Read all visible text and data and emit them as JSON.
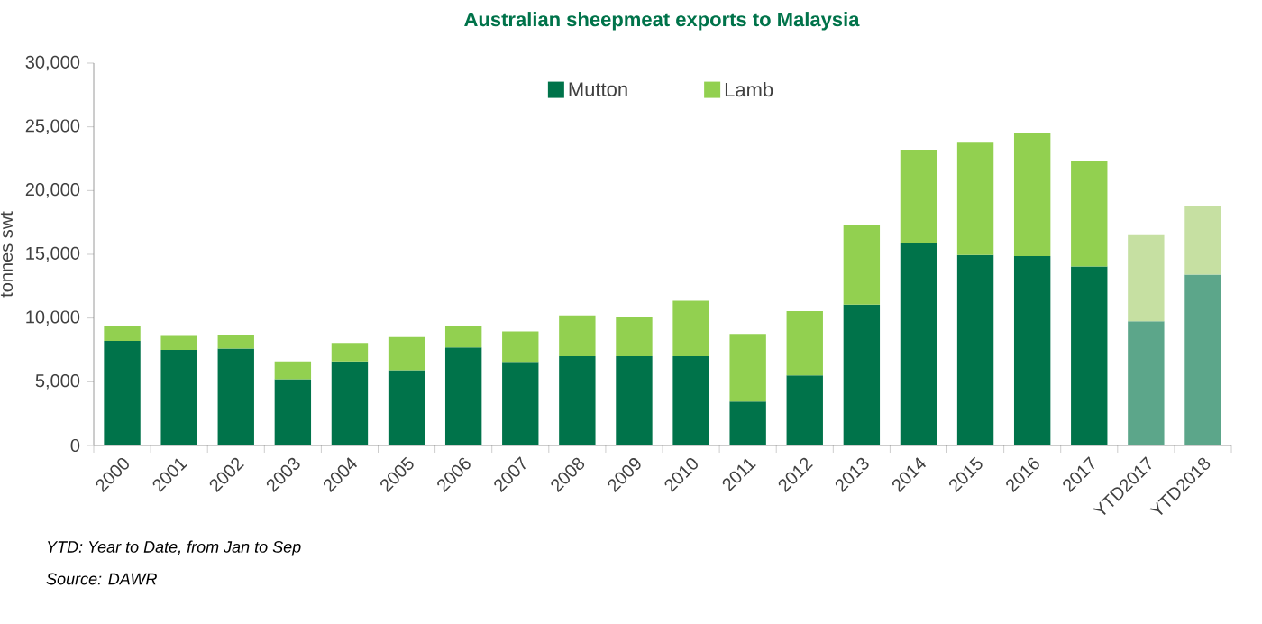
{
  "chart_data": {
    "type": "bar",
    "stacked": true,
    "title": "Australian sheepmeat exports to Malaysia",
    "ylabel": "tonnes swt",
    "categories": [
      "2000",
      "2001",
      "2002",
      "2003",
      "2004",
      "2005",
      "2006",
      "2007",
      "2008",
      "2009",
      "2010",
      "2011",
      "2012",
      "2013",
      "2014",
      "2015",
      "2016",
      "2017",
      "YTD2017",
      "YTD2018"
    ],
    "series": [
      {
        "name": "Mutton",
        "color": "#00734a",
        "colors": [
          "#00734a",
          "#00734a",
          "#00734a",
          "#00734a",
          "#00734a",
          "#00734a",
          "#00734a",
          "#00734a",
          "#00734a",
          "#00734a",
          "#00734a",
          "#00734a",
          "#00734a",
          "#00734a",
          "#00734a",
          "#00734a",
          "#00734a",
          "#00734a",
          "#5ca68a",
          "#5ca68a"
        ],
        "values": [
          8200,
          7500,
          7600,
          5200,
          6600,
          5900,
          7700,
          6500,
          7000,
          7000,
          7000,
          3450,
          5500,
          11050,
          15900,
          14950,
          14850,
          14050,
          9750,
          13400
        ]
      },
      {
        "name": "Lamb",
        "color": "#92d050",
        "colors": [
          "#92d050",
          "#92d050",
          "#92d050",
          "#92d050",
          "#92d050",
          "#92d050",
          "#92d050",
          "#92d050",
          "#92d050",
          "#92d050",
          "#92d050",
          "#92d050",
          "#92d050",
          "#92d050",
          "#92d050",
          "#92d050",
          "#92d050",
          "#92d050",
          "#c6e0a2",
          "#c6e0a2"
        ],
        "values": [
          1200,
          1100,
          1100,
          1400,
          1450,
          2600,
          1700,
          2450,
          3200,
          3100,
          4350,
          5300,
          5050,
          6250,
          7300,
          8800,
          9700,
          8250,
          6750,
          5400
        ]
      }
    ],
    "ylim": [
      0,
      30000
    ],
    "yticks": [
      0,
      {
        "value": 5000,
        "label": "5,000"
      },
      {
        "value": 10000,
        "label": "10,000"
      },
      {
        "value": 15000,
        "label": "15,000"
      },
      {
        "value": 20000,
        "label": "20,000"
      },
      {
        "value": 25000,
        "label": "25,000"
      },
      {
        "value": 30000,
        "label": "30,000"
      }
    ],
    "legend": "top",
    "annotations": [
      "YTD: Year to Date, from Jan to Sep",
      "Source: DAWR"
    ]
  }
}
